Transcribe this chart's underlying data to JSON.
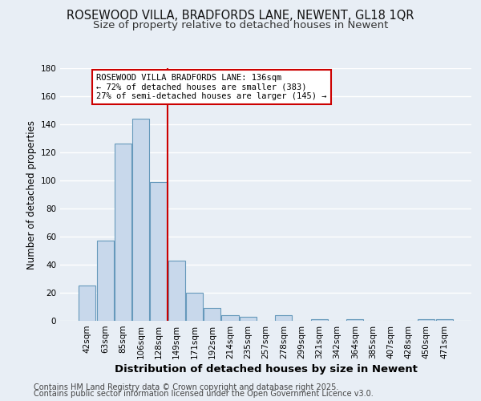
{
  "title": "ROSEWOOD VILLA, BRADFORDS LANE, NEWENT, GL18 1QR",
  "subtitle": "Size of property relative to detached houses in Newent",
  "xlabel": "Distribution of detached houses by size in Newent",
  "ylabel": "Number of detached properties",
  "categories": [
    "42sqm",
    "63sqm",
    "85sqm",
    "106sqm",
    "128sqm",
    "149sqm",
    "171sqm",
    "192sqm",
    "214sqm",
    "235sqm",
    "257sqm",
    "278sqm",
    "299sqm",
    "321sqm",
    "342sqm",
    "364sqm",
    "385sqm",
    "407sqm",
    "428sqm",
    "450sqm",
    "471sqm"
  ],
  "values": [
    25,
    57,
    126,
    144,
    99,
    43,
    20,
    9,
    4,
    3,
    0,
    4,
    0,
    1,
    0,
    1,
    0,
    0,
    0,
    1,
    1
  ],
  "bar_color": "#c8d8eb",
  "bar_edge_color": "#6699bb",
  "bar_linewidth": 0.8,
  "vline_x": 4.5,
  "vline_color": "#cc0000",
  "annotation_line1": "ROSEWOOD VILLA BRADFORDS LANE: 136sqm",
  "annotation_line2": "← 72% of detached houses are smaller (383)",
  "annotation_line3": "27% of semi-detached houses are larger (145) →",
  "annotation_box_facecolor": "#ffffff",
  "annotation_box_edgecolor": "#cc0000",
  "ylim": [
    0,
    180
  ],
  "yticks": [
    0,
    20,
    40,
    60,
    80,
    100,
    120,
    140,
    160,
    180
  ],
  "background_color": "#e8eef5",
  "plot_background": "#e8eef5",
  "grid_color": "#ffffff",
  "footer1": "Contains HM Land Registry data © Crown copyright and database right 2025.",
  "footer2": "Contains public sector information licensed under the Open Government Licence v3.0.",
  "title_fontsize": 10.5,
  "subtitle_fontsize": 9.5,
  "xlabel_fontsize": 9.5,
  "ylabel_fontsize": 8.5,
  "tick_fontsize": 7.5,
  "annotation_fontsize": 7.5,
  "footer_fontsize": 7.0
}
